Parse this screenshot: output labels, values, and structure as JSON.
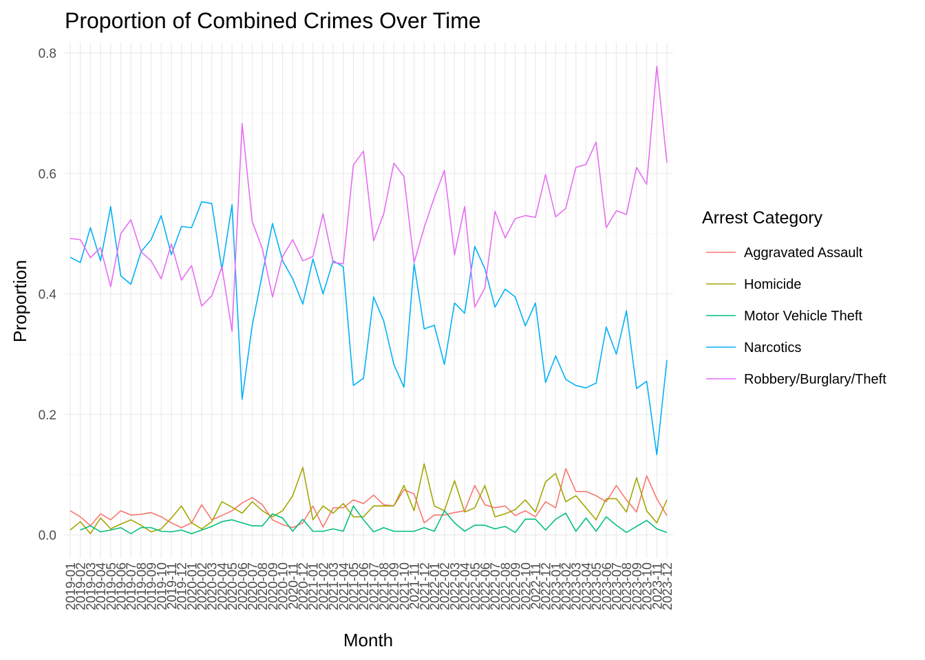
{
  "chart_data": {
    "type": "line",
    "title": "Proportion of Combined Crimes Over Time",
    "xlabel": "Month",
    "ylabel": "Proportion",
    "ylim": [
      0,
      0.8
    ],
    "yticks": [
      "0.0",
      "0.2",
      "0.4",
      "0.6",
      "0.8"
    ],
    "grid": true,
    "legend": {
      "title": "Arrest Category",
      "position": "right"
    },
    "x": [
      "2019-01",
      "2019-02",
      "2019-03",
      "2019-04",
      "2019-05",
      "2019-06",
      "2019-07",
      "2019-08",
      "2019-09",
      "2019-10",
      "2019-11",
      "2019-12",
      "2020-01",
      "2020-02",
      "2020-03",
      "2020-04",
      "2020-05",
      "2020-06",
      "2020-07",
      "2020-08",
      "2020-09",
      "2020-10",
      "2020-11",
      "2020-12",
      "2021-01",
      "2021-02",
      "2021-03",
      "2021-04",
      "2021-05",
      "2021-06",
      "2021-07",
      "2021-08",
      "2021-09",
      "2021-10",
      "2021-11",
      "2021-12",
      "2022-01",
      "2022-02",
      "2022-03",
      "2022-04",
      "2022-05",
      "2022-06",
      "2022-07",
      "2022-08",
      "2022-09",
      "2022-10",
      "2022-11",
      "2022-12",
      "2023-01",
      "2023-02",
      "2023-03",
      "2023-04",
      "2023-05",
      "2023-06",
      "2023-07",
      "2023-08",
      "2023-09",
      "2023-10",
      "2023-11",
      "2023-12"
    ],
    "series": [
      {
        "name": "Aggravated Assault",
        "color": "#F8766D",
        "values": [
          0.04,
          0.03,
          0.015,
          0.035,
          0.025,
          0.04,
          0.033,
          0.034,
          0.037,
          0.03,
          0.02,
          0.012,
          0.02,
          0.05,
          0.025,
          0.032,
          0.04,
          0.053,
          0.062,
          0.05,
          0.025,
          0.017,
          0.012,
          0.02,
          0.048,
          0.013,
          0.045,
          0.045,
          0.058,
          0.052,
          0.066,
          0.05,
          0.048,
          0.075,
          0.068,
          0.02,
          0.033,
          0.033,
          0.037,
          0.04,
          0.082,
          0.05,
          0.045,
          0.048,
          0.032,
          0.04,
          0.03,
          0.055,
          0.045,
          0.11,
          0.072,
          0.072,
          0.065,
          0.055,
          0.082,
          0.058,
          0.038,
          0.098,
          0.06,
          0.032
        ]
      },
      {
        "name": "Homicide",
        "color": "#A3A500",
        "values": [
          0.008,
          0.022,
          0.002,
          0.028,
          0.01,
          0.018,
          0.025,
          0.016,
          0.005,
          0.01,
          0.028,
          0.048,
          0.02,
          0.01,
          0.022,
          0.055,
          0.046,
          0.036,
          0.055,
          0.04,
          0.03,
          0.04,
          0.065,
          0.112,
          0.025,
          0.048,
          0.036,
          0.052,
          0.03,
          0.03,
          0.048,
          0.048,
          0.048,
          0.082,
          0.04,
          0.118,
          0.048,
          0.04,
          0.09,
          0.038,
          0.045,
          0.082,
          0.03,
          0.035,
          0.042,
          0.058,
          0.038,
          0.088,
          0.102,
          0.055,
          0.065,
          0.045,
          0.025,
          0.06,
          0.06,
          0.038,
          0.095,
          0.04,
          0.02,
          0.058
        ]
      },
      {
        "name": "Motor Vehicle Theft",
        "color": "#00BF7D",
        "values": [
          null,
          0.008,
          0.015,
          0.005,
          0.008,
          0.012,
          0.002,
          0.012,
          0.012,
          0.006,
          0.005,
          0.008,
          0.002,
          0.008,
          0.014,
          0.022,
          0.025,
          0.02,
          0.015,
          0.015,
          0.035,
          0.028,
          0.006,
          0.026,
          0.006,
          0.006,
          0.01,
          0.006,
          0.048,
          0.025,
          0.005,
          0.012,
          0.006,
          0.006,
          0.006,
          0.012,
          0.006,
          0.04,
          0.02,
          0.006,
          0.016,
          0.016,
          0.01,
          0.014,
          0.004,
          0.026,
          0.026,
          0.008,
          0.026,
          0.036,
          0.006,
          0.028,
          0.006,
          0.03,
          0.016,
          0.004,
          0.014,
          0.024,
          0.01,
          0.004
        ]
      },
      {
        "name": "Narcotics",
        "color": "#00B0F6",
        "values": [
          0.461,
          0.452,
          0.51,
          0.455,
          0.545,
          0.43,
          0.416,
          0.47,
          0.49,
          0.53,
          0.465,
          0.512,
          0.51,
          0.553,
          0.55,
          0.44,
          0.548,
          0.225,
          0.348,
          0.433,
          0.517,
          0.455,
          0.425,
          0.383,
          0.458,
          0.4,
          0.455,
          0.445,
          0.248,
          0.26,
          0.395,
          0.355,
          0.283,
          0.245,
          0.45,
          0.342,
          0.348,
          0.283,
          0.385,
          0.368,
          0.479,
          0.442,
          0.378,
          0.408,
          0.395,
          0.347,
          0.385,
          0.253,
          0.297,
          0.258,
          0.248,
          0.244,
          0.252,
          0.345,
          0.3,
          0.372,
          0.243,
          0.255,
          0.133,
          0.29
        ]
      },
      {
        "name": "Robbery/Burglary/Theft",
        "color": "#E76BF3",
        "values": [
          0.492,
          0.49,
          0.46,
          0.477,
          0.412,
          0.5,
          0.523,
          0.47,
          0.455,
          0.425,
          0.483,
          0.423,
          0.447,
          0.38,
          0.397,
          0.445,
          0.338,
          0.683,
          0.52,
          0.475,
          0.395,
          0.462,
          0.49,
          0.455,
          0.462,
          0.533,
          0.452,
          0.45,
          0.614,
          0.637,
          0.488,
          0.533,
          0.617,
          0.595,
          0.452,
          0.51,
          0.56,
          0.605,
          0.465,
          0.545,
          0.378,
          0.41,
          0.537,
          0.493,
          0.525,
          0.53,
          0.527,
          0.598,
          0.528,
          0.542,
          0.61,
          0.615,
          0.652,
          0.51,
          0.538,
          0.532,
          0.61,
          0.582,
          0.778,
          0.618
        ]
      }
    ]
  }
}
